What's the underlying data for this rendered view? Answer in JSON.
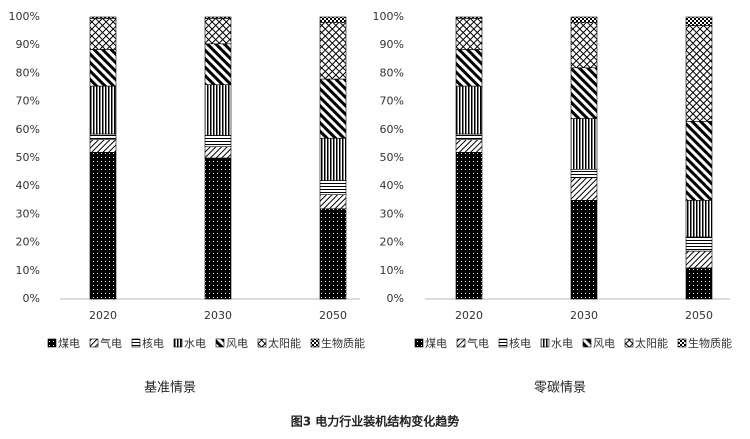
{
  "chart_data": [
    {
      "type": "bar",
      "stacked": true,
      "title": "基准情景",
      "categories": [
        "2020",
        "2030",
        "2050"
      ],
      "ylim": [
        0,
        100
      ],
      "yticks": [
        {
          "value": 0,
          "label": "0%"
        },
        {
          "value": 10,
          "label": "10%"
        },
        {
          "value": 20,
          "label": "20%"
        },
        {
          "value": 30,
          "label": "30%"
        },
        {
          "value": 40,
          "label": "40%"
        },
        {
          "value": 50,
          "label": "50%"
        },
        {
          "value": 60,
          "label": "60%"
        },
        {
          "value": 70,
          "label": "70%"
        },
        {
          "value": 80,
          "label": "80%"
        },
        {
          "value": 90,
          "label": "90%"
        },
        {
          "value": 100,
          "label": "100%"
        }
      ],
      "legend": "bottom",
      "series": [
        {
          "name": "煤电",
          "color": "#000000",
          "values": [
            52,
            50,
            32
          ]
        },
        {
          "name": "气电",
          "color": "#000000",
          "values": [
            4.5,
            4,
            5
          ]
        },
        {
          "name": "核电",
          "color": "#000000",
          "values": [
            2,
            4,
            5
          ]
        },
        {
          "name": "水电",
          "color": "#000000",
          "values": [
            17,
            18,
            15
          ]
        },
        {
          "name": "风电",
          "color": "#000000",
          "values": [
            13,
            14.5,
            21
          ]
        },
        {
          "name": "太阳能",
          "color": "#000000",
          "values": [
            11,
            9,
            20
          ]
        },
        {
          "name": "生物质能",
          "color": "#000000",
          "values": [
            0.5,
            0.5,
            2
          ]
        }
      ]
    },
    {
      "type": "bar",
      "stacked": true,
      "title": "零碳情景",
      "categories": [
        "2020",
        "2030",
        "2050"
      ],
      "ylim": [
        0,
        100
      ],
      "yticks": [
        {
          "value": 0,
          "label": "0%"
        },
        {
          "value": 10,
          "label": "10%"
        },
        {
          "value": 20,
          "label": "20%"
        },
        {
          "value": 30,
          "label": "30%"
        },
        {
          "value": 40,
          "label": "40%"
        },
        {
          "value": 50,
          "label": "50%"
        },
        {
          "value": 60,
          "label": "60%"
        },
        {
          "value": 70,
          "label": "70%"
        },
        {
          "value": 80,
          "label": "80%"
        },
        {
          "value": 90,
          "label": "90%"
        },
        {
          "value": 100,
          "label": "100%"
        }
      ],
      "legend": "bottom",
      "series": [
        {
          "name": "煤电",
          "color": "#000000",
          "values": [
            52,
            35,
            11
          ]
        },
        {
          "name": "气电",
          "color": "#000000",
          "values": [
            4.5,
            8,
            6
          ]
        },
        {
          "name": "核电",
          "color": "#000000",
          "values": [
            2,
            3,
            5
          ]
        },
        {
          "name": "水电",
          "color": "#000000",
          "values": [
            17,
            18,
            13
          ]
        },
        {
          "name": "风电",
          "color": "#000000",
          "values": [
            13,
            18,
            28
          ]
        },
        {
          "name": "太阳能",
          "color": "#000000",
          "values": [
            11,
            16,
            34
          ]
        },
        {
          "name": "生物质能",
          "color": "#000000",
          "values": [
            0.5,
            2,
            3
          ]
        }
      ]
    }
  ],
  "caption": "图3 电力行业装机结构变化趋势"
}
